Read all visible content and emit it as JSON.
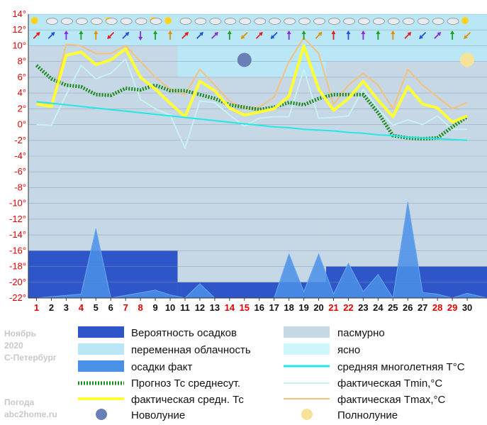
{
  "chart_data": {
    "type": "line",
    "title": "",
    "xlabel": "",
    "ylabel": "",
    "ylim": [
      -22,
      14
    ],
    "y_ticks": [
      "14°",
      "12°",
      "10°",
      "8°",
      "6°",
      "4°",
      "2°",
      "0°",
      "-2°",
      "-4°",
      "-6°",
      "-8°",
      "-10°",
      "-12°",
      "-14°",
      "-16°",
      "-18°",
      "-20°",
      "-22°"
    ],
    "x_labels": [
      "1",
      "2",
      "3",
      "4",
      "5",
      "6",
      "7",
      "8",
      "9",
      "10",
      "11",
      "12",
      "13",
      "14",
      "15",
      "16",
      "17",
      "18",
      "19",
      "20",
      "21",
      "22",
      "23",
      "24",
      "25",
      "26",
      "27",
      "28",
      "29",
      "30"
    ],
    "red_days": [
      1,
      4,
      7,
      8,
      14,
      15,
      21,
      22,
      28,
      29
    ],
    "sky": {
      "overcast_day_ranges": [
        [
          1,
          10.5
        ],
        [
          10.5,
          20.5
        ],
        [
          20.5,
          30
        ]
      ],
      "overcast_from_y": [
        10,
        6,
        8
      ],
      "variable_from_y": 14
    },
    "precip_probability": [
      {
        "from": 1,
        "to": 10.5,
        "value": -16
      },
      {
        "from": 10.5,
        "to": 20.5,
        "value": -20
      },
      {
        "from": 20.5,
        "to": 30,
        "value": -18
      }
    ],
    "series": [
      {
        "name": "фактическая Tmax,°C",
        "color": "#f5c27a",
        "values": [
          2.8,
          2.5,
          10.2,
          10,
          9,
          9,
          10,
          8,
          6,
          4.5,
          3.8,
          7,
          5,
          3,
          2,
          2.2,
          3.5,
          8,
          11,
          9,
          2.5,
          5,
          6.5,
          5,
          2,
          7,
          5,
          3.5,
          2,
          2.8
        ]
      },
      {
        "name": "фактическая Tmin,°C",
        "color": "#c8f2f2",
        "values": [
          0,
          -0.1,
          3.8,
          7.5,
          5.8,
          6.5,
          8.3,
          3.2,
          2,
          1.2,
          -3,
          3,
          2.8,
          1.2,
          -0.2,
          0.8,
          1,
          1,
          7,
          0.8,
          0.9,
          1.1,
          4.5,
          2,
          -0.1,
          0.6,
          0,
          1.1,
          -0.6,
          -0.6
        ]
      },
      {
        "name": "Прогноз Тс среднесут.",
        "color": "#1a8a1a",
        "values": [
          7.5,
          5.8,
          5,
          4.8,
          3.8,
          3.7,
          4.6,
          4.4,
          5,
          4.3,
          4.3,
          3.8,
          3.3,
          2.5,
          2.2,
          1.9,
          2.2,
          2.8,
          2.5,
          3.3,
          3.8,
          3.8,
          3.8,
          1.5,
          -1.4,
          -1.7,
          -1.8,
          -1.7,
          -0.3,
          1
        ]
      },
      {
        "name": "фактическая средн. Тс",
        "color": "#ffff33",
        "values": [
          2.6,
          2.3,
          8.8,
          9.2,
          7.6,
          8.2,
          9.6,
          6,
          4.5,
          2.7,
          1,
          5.5,
          4.3,
          2.1,
          1.2,
          1.6,
          2,
          3.6,
          10,
          4.5,
          1.8,
          3.3,
          5.5,
          3.1,
          1,
          4.8,
          2.6,
          2.1,
          0.3,
          1.1
        ]
      },
      {
        "name": "средняя многолетняя T°C",
        "color": "#22e8e8",
        "values": [
          2.9,
          2.7,
          2.5,
          2.3,
          2.1,
          1.9,
          1.7,
          1.5,
          1.3,
          1.1,
          0.9,
          0.7,
          0.5,
          0.3,
          0.1,
          -0.1,
          -0.3,
          -0.4,
          -0.6,
          -0.7,
          -0.8,
          -1,
          -1.1,
          -1.3,
          -1.4,
          -1.6,
          -1.7,
          -1.8,
          -1.9,
          -2
        ]
      },
      {
        "name": "осадки факт",
        "color": "#4a90e8",
        "points": [
          [
            1,
            -22
          ],
          [
            4,
            -21.5
          ],
          [
            5,
            -13.2
          ],
          [
            6,
            -22
          ],
          [
            9,
            -21
          ],
          [
            10,
            -21.6
          ],
          [
            11,
            -22
          ],
          [
            12,
            -20.2
          ],
          [
            13,
            -22
          ],
          [
            17,
            -22
          ],
          [
            18,
            -16.4
          ],
          [
            19,
            -21.2
          ],
          [
            20,
            -16.4
          ],
          [
            21,
            -21.5
          ],
          [
            22,
            -17.6
          ],
          [
            23,
            -21.2
          ],
          [
            24,
            -19
          ],
          [
            25,
            -22
          ],
          [
            26,
            -9.8
          ],
          [
            27,
            -21.3
          ],
          [
            28,
            -21.5
          ],
          [
            29,
            -22
          ],
          [
            30,
            -21.4
          ]
        ]
      }
    ],
    "events": [
      {
        "label": "Новолуние",
        "day": 15,
        "y": 8.2
      },
      {
        "label": "Полнолуние",
        "day": 30,
        "y": 8.2
      }
    ],
    "legend_placement": "bottom",
    "grid": true
  },
  "legend": {
    "precip_probability": "Вероятность осадков",
    "overcast": "пасмурно",
    "variable_clouds": "переменная облачность",
    "clear": "ясно",
    "precip_fact": "осадки факт",
    "avg_multi_year": "средняя многолетняя T°C",
    "forecast_avg": "Прогноз Тс среднесут.",
    "actual_tmin": "фактическая Tmin,°C",
    "actual_avg": "фактическая средн. Тс",
    "actual_tmax": "фактическая Tmax,°C",
    "new_moon": "Новолуние",
    "full_moon": "Полнолуние"
  },
  "side_text": {
    "month": "Ноябрь",
    "year": "2020",
    "city": "С-Петербург",
    "brand": "Погода",
    "site": "abc2home.ru"
  },
  "colors": {
    "overcast": "#c6d7e6",
    "variable": "#b9e7f6",
    "clear": "#cef7fb",
    "precip_prob": "#2f56c9",
    "red_day": "#e00000"
  },
  "icons": {
    "weather": [
      "sun",
      "cloud",
      "cloud",
      "cloud",
      "cloud",
      "sun-cloud",
      "cloud",
      "cloud",
      "sun-cloud",
      "sun",
      "cloud",
      "cloud",
      "cloud",
      "cloud",
      "cloud",
      "cloud",
      "cloud",
      "cloud",
      "cloud",
      "cloud",
      "cloud",
      "cloud",
      "cloud",
      "cloud",
      "cloud",
      "cloud",
      "cloud",
      "cloud",
      "cloud",
      "sun"
    ],
    "wind": [
      "NE",
      "NE",
      "N",
      "N",
      "N",
      "SW",
      "NE",
      "S",
      "N",
      "N",
      "NE",
      "NE",
      "NE",
      "N",
      "SW",
      "NE",
      "SW",
      "N",
      "N",
      "NE",
      "N",
      "N",
      "N",
      "N",
      "N",
      "NE",
      "SW",
      "NE",
      "N",
      "SW"
    ]
  }
}
